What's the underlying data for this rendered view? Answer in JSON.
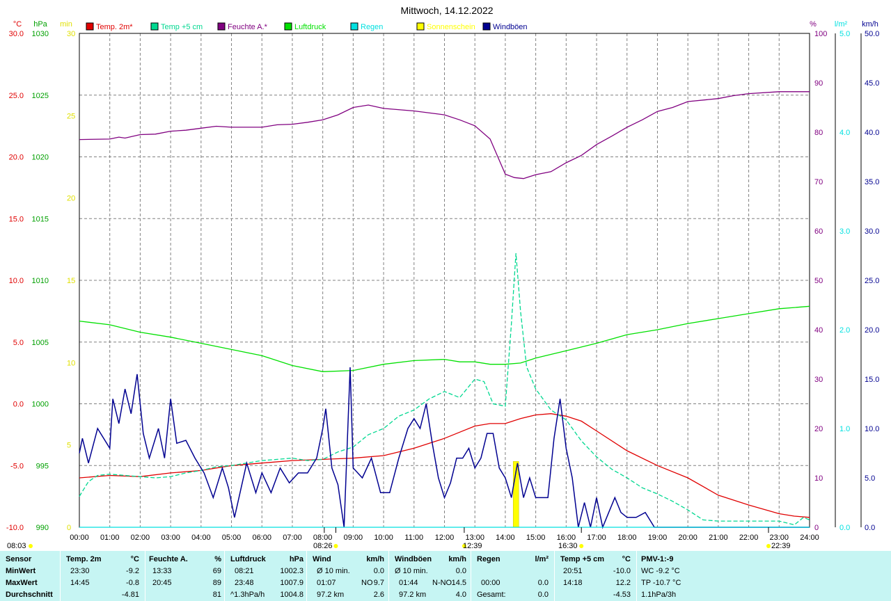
{
  "title": "Mittwoch, 14.12.2022",
  "colors": {
    "temp": "#e00000",
    "temp5": "#00d890",
    "humidity": "#800080",
    "pressure": "#00e000",
    "rain": "#00e0e0",
    "sun": "#ffff00",
    "gust": "#000090",
    "grid": "#808080"
  },
  "chart_data": {
    "type": "line",
    "xlim_hours": [
      0,
      24
    ],
    "x_ticks": [
      "00:00",
      "01:00",
      "02:00",
      "03:00",
      "04:00",
      "05:00",
      "06:00",
      "07:00",
      "08:00",
      "09:00",
      "10:00",
      "11:00",
      "12:00",
      "13:00",
      "14:00",
      "15:00",
      "16:00",
      "17:00",
      "18:00",
      "19:00",
      "20:00",
      "21:00",
      "22:00",
      "23:00",
      "24:00"
    ],
    "axes": [
      {
        "unit": "°C",
        "color": "#e00000",
        "min": -10,
        "max": 30,
        "ticks": [
          "30.0",
          "25.0",
          "20.0",
          "15.0",
          "10.0",
          "5.0",
          "0.0",
          "-5.0",
          "-10.0"
        ]
      },
      {
        "unit": "hPa",
        "color": "#00a000",
        "min": 990,
        "max": 1030,
        "ticks": [
          "1030",
          "1025",
          "1020",
          "1015",
          "1010",
          "1005",
          "1000",
          "995",
          "990"
        ]
      },
      {
        "unit": "min",
        "color": "#e0e000",
        "min": 0,
        "max": 30,
        "ticks": [
          "30",
          "25",
          "20",
          "15",
          "10",
          "5",
          "0"
        ]
      },
      {
        "unit": "%",
        "color": "#800080",
        "min": 0,
        "max": 100,
        "ticks": [
          "100",
          "90",
          "80",
          "70",
          "60",
          "50",
          "40",
          "30",
          "20",
          "10",
          "0"
        ]
      },
      {
        "unit": "l/m²",
        "color": "#00e0e0",
        "min": 0,
        "max": 5,
        "ticks": [
          "5.0",
          "4.0",
          "3.0",
          "2.0",
          "1.0",
          "0.0"
        ]
      },
      {
        "unit": "km/h",
        "color": "#000090",
        "min": 0,
        "max": 50,
        "ticks": [
          "50.0",
          "45.0",
          "40.0",
          "35.0",
          "30.0",
          "25.0",
          "20.0",
          "15.0",
          "10.0",
          "5.0",
          "0.0"
        ]
      }
    ],
    "legend": [
      {
        "name": "Temp. 2m*",
        "color": "#e00000"
      },
      {
        "name": "Temp +5 cm",
        "color": "#00d890"
      },
      {
        "name": "Feuchte A.*",
        "color": "#800080"
      },
      {
        "name": "Luftdruck",
        "color": "#00e000"
      },
      {
        "name": "Regen",
        "color": "#00e0e0"
      },
      {
        "name": "Sonnenschein",
        "color": "#ffff00"
      },
      {
        "name": "Windböen",
        "color": "#000090"
      }
    ],
    "series": [
      {
        "name": "Temp. 2m*",
        "axis": "°C",
        "color": "#e00000",
        "style": "solid",
        "x": [
          0,
          1,
          2,
          3,
          4,
          5,
          6,
          7,
          8,
          9,
          10,
          11,
          12,
          12.5,
          13,
          13.5,
          14,
          14.5,
          15,
          15.5,
          16,
          16.5,
          17,
          18,
          19,
          20,
          21,
          22,
          23,
          23.5,
          24
        ],
        "y": [
          -6.0,
          -5.8,
          -5.9,
          -5.6,
          -5.4,
          -5.0,
          -4.8,
          -4.6,
          -4.5,
          -4.4,
          -4.2,
          -3.6,
          -2.8,
          -2.3,
          -1.8,
          -1.6,
          -1.6,
          -1.2,
          -0.9,
          -0.8,
          -1.0,
          -1.4,
          -2.2,
          -3.8,
          -5.0,
          -6.0,
          -7.4,
          -8.2,
          -8.9,
          -9.1,
          -9.2
        ]
      },
      {
        "name": "Temp +5 cm",
        "axis": "°C",
        "color": "#00d890",
        "style": "dashed",
        "x": [
          0,
          0.3,
          0.6,
          1,
          1.5,
          2,
          2.5,
          3,
          3.5,
          4,
          4.5,
          5,
          5.5,
          6,
          6.5,
          7,
          7.5,
          8,
          8.5,
          9,
          9.5,
          10,
          10.5,
          11,
          11.5,
          12,
          12.5,
          13,
          13.3,
          13.6,
          14,
          14.2,
          14.35,
          14.5,
          14.7,
          15,
          15.5,
          16,
          16.5,
          17,
          17.5,
          18,
          18.5,
          19,
          19.5,
          20,
          20.5,
          21,
          22,
          23,
          23.5,
          23.8,
          24
        ],
        "y": [
          -7.5,
          -6.3,
          -5.8,
          -5.7,
          -5.8,
          -5.9,
          -6.0,
          -5.9,
          -5.6,
          -5.4,
          -5.1,
          -5.0,
          -4.8,
          -4.6,
          -4.5,
          -4.4,
          -4.6,
          -4.5,
          -3.9,
          -3.5,
          -2.5,
          -2.0,
          -1.0,
          -0.5,
          0.4,
          1.0,
          0.5,
          2.0,
          1.8,
          0.0,
          -0.2,
          6.5,
          12.2,
          7.5,
          3.0,
          1.2,
          -0.5,
          -1.3,
          -3.0,
          -4.3,
          -5.3,
          -6.0,
          -6.8,
          -7.3,
          -7.9,
          -8.6,
          -9.4,
          -9.5,
          -9.5,
          -9.5,
          -9.8,
          -9.2,
          -9.4
        ]
      },
      {
        "name": "Feuchte A.*",
        "axis": "%",
        "color": "#800080",
        "style": "solid",
        "x": [
          0,
          1,
          1.3,
          1.5,
          2,
          2.5,
          3,
          3.5,
          4,
          4.5,
          5,
          6,
          6.5,
          7,
          7.5,
          8,
          8.5,
          9,
          9.5,
          10,
          11,
          12,
          12.5,
          13,
          13.5,
          14,
          14.3,
          14.6,
          15,
          15.5,
          16,
          16.5,
          17,
          17.5,
          18,
          18.5,
          19,
          19.5,
          20,
          21,
          21.5,
          22,
          23,
          24
        ],
        "y": [
          78.5,
          78.6,
          79,
          78.8,
          79.5,
          79.6,
          80.2,
          80.4,
          80.8,
          81.2,
          81,
          81,
          81.5,
          81.6,
          82,
          82.5,
          83.5,
          85,
          85.5,
          84.8,
          84.3,
          83.5,
          82.5,
          81.3,
          78.6,
          71.5,
          70.8,
          70.6,
          71.4,
          72,
          73.8,
          75.3,
          77.5,
          79.2,
          81,
          82.5,
          84.2,
          85,
          86.2,
          86.8,
          87.4,
          87.8,
          88.2,
          88.2
        ]
      },
      {
        "name": "Luftdruck",
        "axis": "hPa",
        "color": "#00e000",
        "style": "solid",
        "x": [
          0,
          1,
          2,
          3,
          4,
          5,
          6,
          7,
          8,
          9,
          10,
          11,
          12,
          12.5,
          13,
          13.5,
          14,
          14.5,
          15,
          16,
          17,
          18,
          19,
          20,
          21,
          22,
          23,
          23.5,
          24
        ],
        "y": [
          1006.7,
          1006.4,
          1005.8,
          1005.4,
          1004.9,
          1004.4,
          1003.9,
          1003.1,
          1002.6,
          1002.7,
          1003.2,
          1003.5,
          1003.6,
          1003.4,
          1003.4,
          1003.2,
          1003.2,
          1003.3,
          1003.7,
          1004.3,
          1004.9,
          1005.6,
          1006.0,
          1006.5,
          1006.9,
          1007.3,
          1007.7,
          1007.8,
          1007.9
        ]
      },
      {
        "name": "Windböen",
        "axis": "km/h",
        "color": "#000090",
        "style": "solid",
        "x": [
          0,
          0.1,
          0.3,
          0.6,
          1.0,
          1.1,
          1.3,
          1.5,
          1.7,
          1.9,
          2.1,
          2.3,
          2.6,
          2.8,
          3.0,
          3.2,
          3.5,
          3.8,
          4.1,
          4.4,
          4.7,
          4.9,
          5.1,
          5.5,
          5.8,
          6.0,
          6.3,
          6.6,
          6.9,
          7.2,
          7.5,
          7.8,
          8.0,
          8.1,
          8.3,
          8.5,
          8.7,
          8.9,
          9.0,
          9.3,
          9.6,
          9.9,
          10.2,
          10.5,
          10.8,
          11.0,
          11.2,
          11.4,
          11.6,
          11.8,
          12.0,
          12.2,
          12.4,
          12.6,
          12.8,
          13.0,
          13.2,
          13.4,
          13.6,
          13.8,
          14.0,
          14.2,
          14.4,
          14.6,
          14.8,
          15.0,
          15.2,
          15.4,
          15.6,
          15.8,
          16.0,
          16.2,
          16.4,
          16.6,
          16.8,
          17.0,
          17.2,
          17.4,
          17.6,
          17.8,
          18.0,
          18.3,
          18.6,
          18.9,
          19.0,
          24
        ],
        "y": [
          7.5,
          9,
          6.5,
          10,
          8,
          13,
          10.5,
          14,
          11.5,
          15.5,
          9.5,
          7,
          10,
          7,
          13,
          8.5,
          8.8,
          7,
          5.5,
          3,
          6,
          4,
          1,
          6.5,
          3.5,
          5.5,
          3.5,
          6,
          4.5,
          5.5,
          5.5,
          7,
          10,
          12,
          6,
          4.3,
          0,
          16.2,
          6,
          5,
          7,
          3.5,
          3.5,
          7,
          10,
          11,
          10,
          12.5,
          8.5,
          5,
          3,
          4.5,
          7,
          7,
          8,
          6,
          7,
          9.5,
          9.5,
          6,
          5,
          3,
          6.5,
          3,
          5,
          3,
          3,
          3,
          9,
          13,
          8,
          5,
          0,
          2.5,
          0,
          3,
          0,
          1.5,
          3,
          1.5,
          1,
          1,
          1.5,
          0,
          0,
          0
        ]
      },
      {
        "name": "Regen",
        "axis": "l/m²",
        "color": "#00e0e0",
        "style": "solid",
        "x": [
          0,
          24
        ],
        "y": [
          0,
          0
        ]
      }
    ],
    "sunshine_bars": [
      {
        "x": 14.35,
        "min": 4.0
      }
    ],
    "bottom_markers": [
      "08:03",
      "08:26",
      "12:39",
      "16:30",
      "22:39"
    ]
  },
  "footer": {
    "sensor": {
      "title": "Sensor",
      "rows": [
        "MinWert",
        "MaxWert",
        "Durchschnitt"
      ]
    },
    "temp": {
      "title": "Temp. 2m",
      "unit": "°C",
      "rows": [
        [
          "23:30",
          "-9.2"
        ],
        [
          "14:45",
          "-0.8"
        ],
        [
          "",
          "-4.81"
        ]
      ]
    },
    "humidity": {
      "title": "Feuchte A.",
      "unit": "%",
      "rows": [
        [
          "13:33",
          "69"
        ],
        [
          "20:45",
          "89"
        ],
        [
          "",
          "81"
        ]
      ]
    },
    "pressure": {
      "title": "Luftdruck",
      "unit": "hPa",
      "rows": [
        [
          "08:21",
          "1002.3"
        ],
        [
          "23:48",
          "1007.9"
        ],
        [
          "^1.3hPa/h",
          "1004.8"
        ]
      ]
    },
    "wind": {
      "title": "Wind",
      "unit": "km/h",
      "rows": [
        [
          "Ø 10 min.",
          "",
          "0.0"
        ],
        [
          "01:07",
          "NO",
          "9.7"
        ],
        [
          "97.2 km",
          "",
          "2.6"
        ]
      ]
    },
    "gust": {
      "title": "Windböen",
      "unit": "km/h",
      "rows": [
        [
          "Ø 10 min.",
          "",
          "0.0"
        ],
        [
          "01:44",
          "N-NO",
          "14.5"
        ],
        [
          "97.2 km",
          "",
          "4.0"
        ]
      ]
    },
    "rain": {
      "title": "Regen",
      "unit": "l/m²",
      "rows": [
        [
          "",
          ""
        ],
        [
          "00:00",
          "0.0"
        ],
        [
          "Gesamt:",
          "0.0"
        ]
      ]
    },
    "temp5": {
      "title": "Temp +5 cm",
      "unit": "°C",
      "rows": [
        [
          "20:51",
          "-10.0"
        ],
        [
          "14:18",
          "12.2"
        ],
        [
          "",
          "-4.53"
        ]
      ]
    },
    "pmv": {
      "title": "PMV-1:-9",
      "rows": [
        "WC -9.2 °C",
        "TP -10.7 °C",
        "1.1hPa/3h"
      ]
    }
  }
}
